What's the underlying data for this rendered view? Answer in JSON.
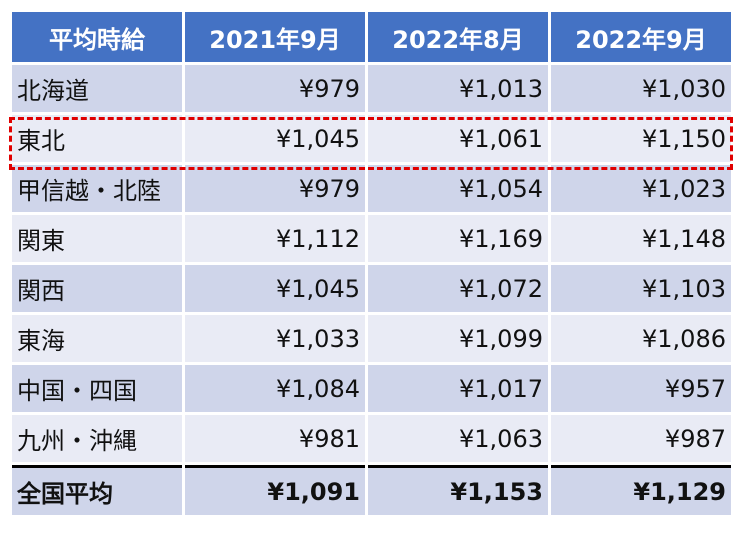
{
  "table": {
    "headers": [
      "平均時給",
      "2021年9月",
      "2022年8月",
      "2022年9月"
    ],
    "rows": [
      {
        "region": "北海道",
        "v2021_09": "¥979",
        "v2022_08": "¥1,013",
        "v2022_09": "¥1,030"
      },
      {
        "region": "東北",
        "v2021_09": "¥1,045",
        "v2022_08": "¥1,061",
        "v2022_09": "¥1,150"
      },
      {
        "region": "甲信越・北陸",
        "v2021_09": "¥979",
        "v2022_08": "¥1,054",
        "v2022_09": "¥1,023"
      },
      {
        "region": "関東",
        "v2021_09": "¥1,112",
        "v2022_08": "¥1,169",
        "v2022_09": "¥1,148"
      },
      {
        "region": "関西",
        "v2021_09": "¥1,045",
        "v2022_08": "¥1,072",
        "v2022_09": "¥1,103"
      },
      {
        "region": "東海",
        "v2021_09": "¥1,033",
        "v2022_08": "¥1,099",
        "v2022_09": "¥1,086"
      },
      {
        "region": "中国・四国",
        "v2021_09": "¥1,084",
        "v2022_08": "¥1,017",
        "v2022_09": "¥957"
      },
      {
        "region": "九州・沖縄",
        "v2021_09": "¥981",
        "v2022_08": "¥1,063",
        "v2022_09": "¥987"
      }
    ],
    "total": {
      "region": "全国平均",
      "v2021_09": "¥1,091",
      "v2022_08": "¥1,153",
      "v2022_09": "¥1,129"
    }
  },
  "highlight": {
    "row": "東北",
    "color": "#e00000"
  },
  "colors": {
    "header_bg": "#4472c4",
    "row_odd_bg": "#cfd5ea",
    "row_even_bg": "#e9ebf5"
  }
}
